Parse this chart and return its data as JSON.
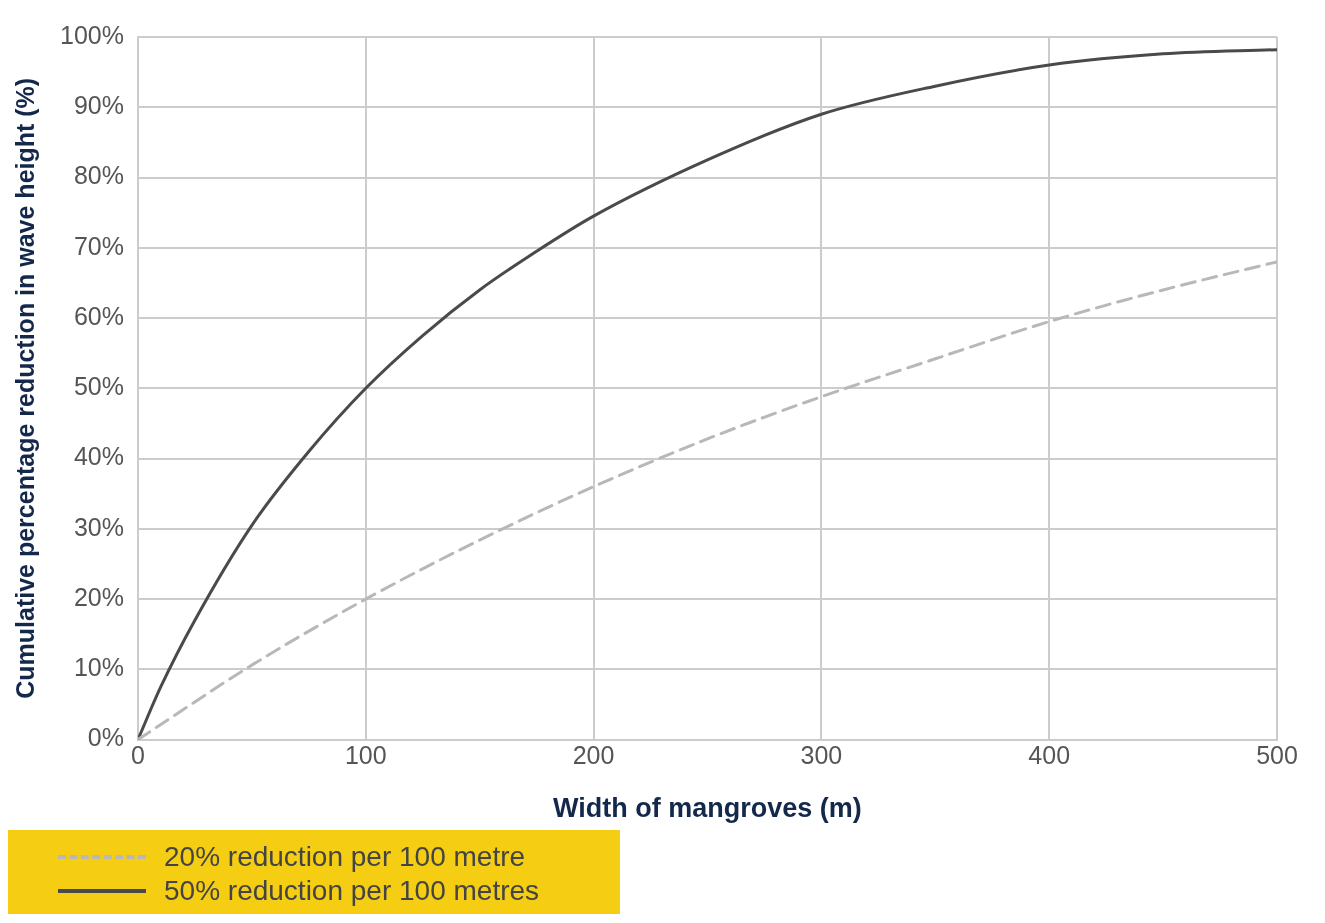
{
  "chart_data": {
    "type": "line",
    "xlabel": "Width of mangroves (m)",
    "ylabel": "Cumulative percentage reduction in wave height (%)",
    "xlim": [
      0,
      500
    ],
    "xticks": [
      0,
      100,
      200,
      300,
      400,
      500
    ],
    "ylim": [
      0,
      100
    ],
    "yticks": [
      {
        "value": 0,
        "label": "0%"
      },
      {
        "value": 10,
        "label": "10%"
      },
      {
        "value": 20,
        "label": "20%"
      },
      {
        "value": 30,
        "label": "30%"
      },
      {
        "value": 40,
        "label": "40%"
      },
      {
        "value": 50,
        "label": "50%"
      },
      {
        "value": 60,
        "label": "60%"
      },
      {
        "value": 70,
        "label": "70%"
      },
      {
        "value": 80,
        "label": "80%"
      },
      {
        "value": 90,
        "label": "90%"
      },
      {
        "value": 100,
        "label": "100%"
      }
    ],
    "grid": true,
    "legend": "bottom left",
    "marker": "none",
    "series": [
      {
        "name": "20% reduction per 100 metre",
        "color": "#b8b8b8",
        "line_style": "dashed",
        "x": [
          0,
          50,
          100,
          150,
          200,
          250,
          300,
          350,
          400,
          450,
          500
        ],
        "values": [
          0,
          10.6,
          20,
          28.4,
          36,
          42.8,
          48.8,
          54.2,
          59.5,
          64,
          68
        ]
      },
      {
        "name": "50% reduction per 100 metres",
        "color": "#4a4a4a",
        "line_style": "solid",
        "x": [
          0,
          10,
          25,
          50,
          75,
          100,
          125,
          150,
          175,
          200,
          250,
          300,
          350,
          400,
          450,
          500
        ],
        "values": [
          0,
          7.5,
          17,
          30.5,
          41,
          50,
          57.5,
          64,
          69.5,
          74.5,
          82.5,
          89,
          93,
          96,
          97.6,
          98.2
        ]
      }
    ]
  }
}
